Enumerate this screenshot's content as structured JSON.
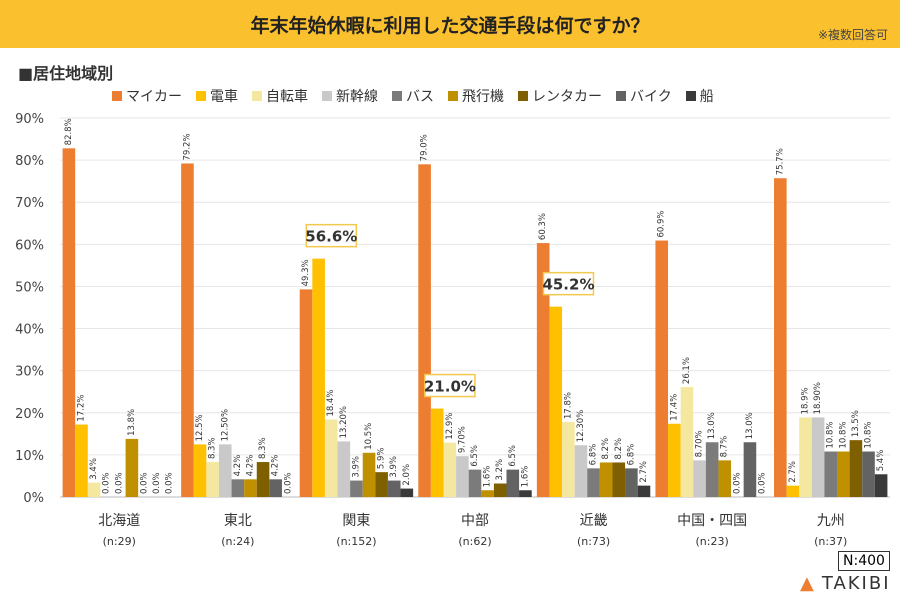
{
  "header": {
    "title": "年末年始休暇に利用した交通手段は何ですか？",
    "note": "※複数回答可"
  },
  "subtitle": "■居住地域別",
  "sample": "N:400",
  "logo": "TAKIBI",
  "chart_data": {
    "type": "bar",
    "ylim": [
      0,
      90
    ],
    "yticks": [
      "0%",
      "10%",
      "20%",
      "30%",
      "40%",
      "50%",
      "60%",
      "70%",
      "80%",
      "90%"
    ],
    "grid": true,
    "legend_placement": "top",
    "categories": [
      "北海道",
      "東北",
      "関東",
      "中部",
      "近畿",
      "中国・四国",
      "九州"
    ],
    "category_n": [
      "(n:29)",
      "(n:24)",
      "(n:152)",
      "(n:62)",
      "(n:73)",
      "(n:23)",
      "(n:37)"
    ],
    "series": [
      {
        "name": "マイカー",
        "color": "#ED7D31",
        "values": [
          82.8,
          79.2,
          49.3,
          79.0,
          60.3,
          60.9,
          75.7
        ],
        "labels": [
          "82.8%",
          "79.2%",
          "49.3%",
          "79.0%",
          "60.3%",
          "60.9%",
          "75.7%"
        ]
      },
      {
        "name": "電車",
        "color": "#FFC000",
        "values": [
          17.2,
          12.5,
          56.6,
          21.0,
          45.2,
          17.4,
          2.7
        ],
        "labels": [
          "17.2%",
          "12.5%",
          "56.6%",
          "21.0%",
          "45.2%",
          "17.4%",
          "2.7%"
        ]
      },
      {
        "name": "自転車",
        "color": "#F4E8A0",
        "values": [
          3.4,
          8.3,
          18.4,
          12.9,
          17.8,
          26.1,
          18.9
        ],
        "labels": [
          "3.4%",
          "8.3%",
          "18.4%",
          "12.9%",
          "17.8%",
          "26.1%",
          "18.9%"
        ]
      },
      {
        "name": "新幹線",
        "color": "#C9C9C9",
        "values": [
          0,
          12.5,
          13.2,
          9.7,
          12.3,
          8.7,
          18.9
        ],
        "labels": [
          "0.0%",
          "12.50%",
          "13.20%",
          "9.70%",
          "12.30%",
          "8.70%",
          "18.90%"
        ]
      },
      {
        "name": "バス",
        "color": "#7B7B7B",
        "values": [
          0,
          4.2,
          3.9,
          6.5,
          6.8,
          13.0,
          10.8
        ],
        "labels": [
          "0.0%",
          "4.2%",
          "3.9%",
          "6.5%",
          "6.8%",
          "13.0%",
          "10.8%"
        ]
      },
      {
        "name": "飛行機",
        "color": "#BF9000",
        "values": [
          13.8,
          4.2,
          10.5,
          1.6,
          8.2,
          8.7,
          10.8
        ],
        "labels": [
          "13.8%",
          "4.2%",
          "10.5%",
          "1.6%",
          "8.2%",
          "8.7%",
          "10.8%"
        ]
      },
      {
        "name": "レンタカー",
        "color": "#7F6000",
        "values": [
          0,
          8.3,
          5.9,
          3.2,
          8.2,
          0,
          13.5
        ],
        "labels": [
          "0.0%",
          "8.3%",
          "5.9%",
          "3.2%",
          "8.2%",
          "0.0%",
          "13.5%"
        ]
      },
      {
        "name": "バイク",
        "color": "#636363",
        "values": [
          0,
          4.2,
          3.9,
          6.5,
          6.8,
          13.0,
          10.8
        ],
        "labels": [
          "0.0%",
          "4.2%",
          "3.9%",
          "6.5%",
          "6.8%",
          "13.0%",
          "10.8%"
        ]
      },
      {
        "name": "船",
        "color": "#3A3A3A",
        "values": [
          0,
          0,
          2.0,
          1.6,
          2.7,
          0,
          5.4
        ],
        "labels": [
          "0.0%",
          "0.0%",
          "2.0%",
          "1.6%",
          "2.7%",
          "0.0%",
          "5.4%"
        ]
      }
    ],
    "highlighted": [
      "56.6%",
      "21.0%",
      "45.2%"
    ]
  }
}
